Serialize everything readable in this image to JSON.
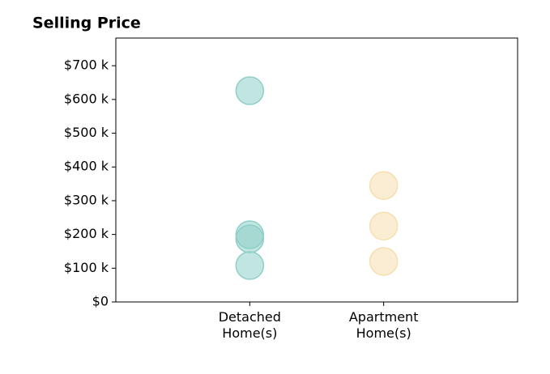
{
  "chart_data": {
    "type": "strip",
    "title": "Selling Price",
    "groups": [
      {
        "category": "Detached Home(s)",
        "color": "#8ecfc7",
        "values": [
          626,
          199,
          187,
          108
        ]
      },
      {
        "category": "Apartment Home(s)",
        "color": "#f5dfae",
        "values": [
          345,
          225,
          120
        ]
      }
    ],
    "ylim": [
      0,
      782
    ],
    "yticks": [
      {
        "value": 0,
        "label": "$0"
      },
      {
        "value": 100,
        "label": "$100 k"
      },
      {
        "value": 200,
        "label": "$200 k"
      },
      {
        "value": 300,
        "label": "$300 k"
      },
      {
        "value": 400,
        "label": "$400 k"
      },
      {
        "value": 500,
        "label": "$500 k"
      },
      {
        "value": 600,
        "label": "$600 k"
      },
      {
        "value": 700,
        "label": "$700 k"
      }
    ],
    "grid": false
  }
}
